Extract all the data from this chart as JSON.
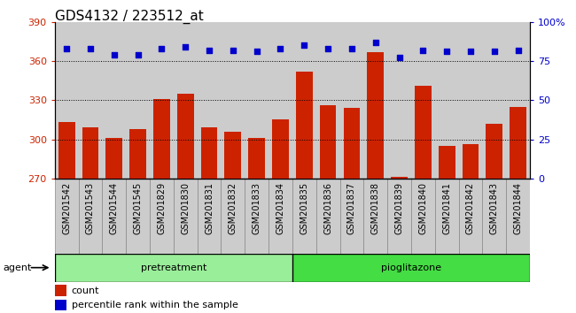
{
  "title": "GDS4132 / 223512_at",
  "categories": [
    "GSM201542",
    "GSM201543",
    "GSM201544",
    "GSM201545",
    "GSM201829",
    "GSM201830",
    "GSM201831",
    "GSM201832",
    "GSM201833",
    "GSM201834",
    "GSM201835",
    "GSM201836",
    "GSM201837",
    "GSM201838",
    "GSM201839",
    "GSM201840",
    "GSM201841",
    "GSM201842",
    "GSM201843",
    "GSM201844"
  ],
  "bar_values": [
    313,
    309,
    301,
    308,
    331,
    335,
    309,
    306,
    301,
    315,
    352,
    326,
    324,
    367,
    271,
    341,
    295,
    296,
    312,
    325
  ],
  "percentile_values": [
    83,
    83,
    79,
    79,
    83,
    84,
    82,
    82,
    81,
    83,
    85,
    83,
    83,
    87,
    77,
    82,
    81,
    81,
    81,
    82
  ],
  "ylim_left": [
    270,
    390
  ],
  "ylim_right": [
    0,
    100
  ],
  "yticks_left": [
    270,
    300,
    330,
    360,
    390
  ],
  "yticks_right": [
    0,
    25,
    50,
    75,
    100
  ],
  "bar_color": "#cc2200",
  "dot_color": "#0000cc",
  "pretreatment_color": "#99ee99",
  "pioglitazone_color": "#44dd44",
  "cell_bg_color": "#cccccc",
  "plot_bg_color": "#ffffff",
  "bar_width": 0.7,
  "title_fontsize": 11,
  "tick_fontsize": 7,
  "axis_color_left": "#cc2200",
  "axis_color_right": "#0000cc",
  "legend_count_label": "count",
  "legend_percentile_label": "percentile rank within the sample"
}
